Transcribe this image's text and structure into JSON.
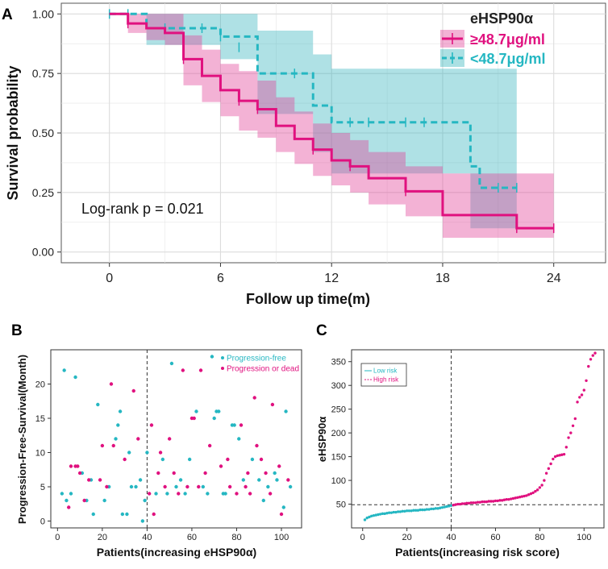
{
  "colors": {
    "high": "#E0117F",
    "low": "#25B7C2",
    "high_band": "#E23E96",
    "low_band": "#2CB1BA",
    "grid": "#E6E6E6",
    "axis": "#333333"
  },
  "chart_data": [
    {
      "id": "A",
      "type": "line",
      "subtype": "kaplan-meier",
      "panel_label": "A",
      "xlabel": "Follow up time(m)",
      "ylabel": "Survival probability",
      "xlim": [
        -2.6,
        26.8
      ],
      "ylim": [
        -0.045,
        1.045
      ],
      "xticks": [
        0,
        6,
        12,
        18,
        24
      ],
      "xtick_labels": [
        "0",
        "6",
        "12",
        "18",
        "24"
      ],
      "yticks": [
        0.0,
        0.25,
        0.5,
        0.75,
        1.0
      ],
      "ytick_labels": [
        "0.00",
        "0.25",
        "0.50",
        "0.75",
        "1.00"
      ],
      "grid": true,
      "legend_title": "eHSP90α",
      "legend_position": "top-right",
      "annotation": "Log-rank  p = 0.021",
      "series": [
        {
          "name": "≥48.7μg/ml",
          "key": "high",
          "line_style": "solid",
          "x": [
            0,
            1,
            2,
            3,
            4,
            5,
            6,
            7,
            8,
            9,
            10,
            11,
            12,
            13,
            14,
            16,
            18,
            22,
            24
          ],
          "y": [
            1.0,
            0.96,
            0.94,
            0.92,
            0.81,
            0.74,
            0.68,
            0.635,
            0.6,
            0.53,
            0.475,
            0.43,
            0.385,
            0.36,
            0.31,
            0.255,
            0.155,
            0.1,
            0.1
          ],
          "upper": [
            1.0,
            1.0,
            1.0,
            1.0,
            0.91,
            0.85,
            0.79,
            0.76,
            0.72,
            0.65,
            0.59,
            0.54,
            0.5,
            0.47,
            0.42,
            0.36,
            0.33,
            0.33,
            0.33
          ],
          "lower": [
            1.0,
            0.92,
            0.89,
            0.87,
            0.7,
            0.63,
            0.57,
            0.51,
            0.48,
            0.42,
            0.37,
            0.32,
            0.28,
            0.25,
            0.2,
            0.15,
            0.06,
            0.06,
            0.06
          ],
          "censor_x": [
            1,
            4,
            7,
            8,
            11,
            13,
            16,
            22,
            24
          ],
          "censor_y": [
            0.96,
            0.81,
            0.635,
            0.6,
            0.43,
            0.36,
            0.255,
            0.1,
            0.1
          ]
        },
        {
          "name": "<48.7μg/ml",
          "key": "low",
          "line_style": "dashed",
          "x": [
            0,
            2,
            6,
            8,
            11,
            12,
            19.5,
            20,
            22
          ],
          "y": [
            1.0,
            0.94,
            0.905,
            0.75,
            0.615,
            0.545,
            0.36,
            0.27,
            0.27
          ],
          "upper": [
            1.0,
            1.0,
            1.0,
            0.93,
            0.83,
            0.77,
            0.77,
            0.77,
            0.77
          ],
          "lower": [
            1.0,
            0.87,
            0.81,
            0.58,
            0.42,
            0.33,
            0.1,
            0.1,
            0.1
          ],
          "censor_x": [
            0,
            1,
            3,
            5,
            6,
            7,
            10,
            13,
            14,
            16,
            17,
            21,
            22
          ],
          "censor_y": [
            1.0,
            1.0,
            0.94,
            0.94,
            0.905,
            0.86,
            0.75,
            0.545,
            0.545,
            0.545,
            0.545,
            0.27,
            0.27
          ]
        }
      ]
    },
    {
      "id": "B",
      "type": "scatter",
      "panel_label": "B",
      "xlabel": "Patients(increasing eHSP90α)",
      "ylabel": "Progression-Free-Survival(Month)",
      "xlim": [
        -3,
        109
      ],
      "ylim": [
        -1,
        25
      ],
      "xticks": [
        0,
        20,
        40,
        60,
        80,
        100
      ],
      "xtick_labels": [
        "0",
        "20",
        "40",
        "60",
        "80",
        "100"
      ],
      "yticks": [
        0,
        5,
        10,
        15,
        20
      ],
      "ytick_labels": [
        "0",
        "5",
        "10",
        "15",
        "20"
      ],
      "cutoff_x": 40,
      "legend_position": "top-right",
      "series": [
        {
          "name": "Progression-free",
          "key": "low",
          "x": [
            2,
            3,
            4,
            6,
            8,
            11,
            13,
            15,
            16,
            18,
            21,
            23,
            26,
            27,
            28,
            29,
            31,
            32,
            33,
            35,
            37,
            38,
            39,
            40,
            44,
            47,
            49,
            51,
            53,
            55,
            57,
            59,
            62,
            65,
            67,
            69,
            70,
            71,
            72,
            74,
            75,
            78,
            79,
            81,
            83,
            87,
            90,
            92,
            94,
            97,
            98,
            101,
            102,
            104
          ],
          "y": [
            4,
            22,
            3,
            4,
            21,
            7,
            3,
            6,
            1,
            17,
            3,
            5,
            12,
            14,
            16,
            1,
            1,
            10,
            5,
            5,
            6,
            0,
            3,
            10,
            4,
            9,
            4,
            23,
            5,
            6,
            4,
            9,
            16,
            5,
            4,
            24,
            15,
            16,
            16,
            4,
            4,
            14,
            14,
            12,
            6,
            9,
            6,
            3,
            5,
            7,
            6,
            2,
            16,
            5
          ]
        },
        {
          "name": "Progression or dead",
          "key": "high",
          "x": [
            5,
            6,
            8,
            9,
            10,
            12,
            14,
            19,
            20,
            22,
            24,
            25,
            30,
            34,
            36,
            41,
            42,
            43,
            45,
            46,
            48,
            50,
            52,
            54,
            56,
            58,
            60,
            61,
            63,
            64,
            66,
            68,
            73,
            76,
            77,
            80,
            82,
            84,
            85,
            86,
            88,
            89,
            91,
            93,
            95,
            96,
            99,
            100,
            103
          ],
          "y": [
            2,
            8,
            8,
            8,
            7,
            3,
            6,
            6,
            11,
            5,
            20,
            11,
            9,
            19,
            12,
            4,
            14,
            1,
            7,
            10,
            5,
            12,
            7,
            4,
            22,
            5,
            15,
            15,
            5,
            22,
            7,
            11,
            8,
            9,
            5,
            4,
            14,
            5,
            7,
            4,
            18,
            11,
            9,
            7,
            4,
            17,
            8,
            1,
            6
          ]
        }
      ]
    },
    {
      "id": "C",
      "type": "scatter",
      "panel_label": "C",
      "xlabel": "Patients(increasing risk score)",
      "ylabel": "eHSP90α",
      "xlim": [
        -5,
        109
      ],
      "ylim": [
        0,
        375
      ],
      "xticks": [
        0,
        20,
        40,
        60,
        80,
        100
      ],
      "xtick_labels": [
        "0",
        "20",
        "40",
        "60",
        "80",
        "100"
      ],
      "yticks": [
        50,
        100,
        150,
        200,
        250,
        300,
        350
      ],
      "ytick_labels": [
        "50",
        "100",
        "150",
        "200",
        "250",
        "300",
        "350"
      ],
      "cutoff_x": 40,
      "cutoff_y": 48.7,
      "legend_position": "top-left",
      "series": [
        {
          "name": "Low risk",
          "key": "low",
          "x_start": 1,
          "values": [
            17,
            21,
            23,
            25,
            26,
            27,
            28,
            29,
            30,
            30,
            31,
            32,
            32,
            33,
            33,
            34,
            34,
            35,
            35,
            36,
            36,
            36,
            37,
            37,
            37,
            38,
            38,
            38,
            39,
            39,
            40,
            40,
            41,
            41,
            42,
            43,
            44,
            45,
            46,
            47
          ]
        },
        {
          "name": "High risk",
          "key": "high",
          "x_start": 41,
          "values": [
            48,
            49,
            50,
            50,
            51,
            51,
            52,
            52,
            53,
            53,
            53,
            54,
            54,
            55,
            55,
            55,
            56,
            56,
            56,
            57,
            57,
            58,
            58,
            59,
            60,
            60,
            61,
            62,
            63,
            64,
            65,
            66,
            67,
            68,
            70,
            72,
            74,
            77,
            80,
            85,
            90,
            100,
            115,
            125,
            135,
            145,
            150,
            152,
            153,
            154,
            155,
            170,
            190,
            200,
            215,
            230,
            265,
            275,
            280,
            290,
            310,
            340,
            355,
            363,
            368
          ]
        }
      ]
    }
  ]
}
